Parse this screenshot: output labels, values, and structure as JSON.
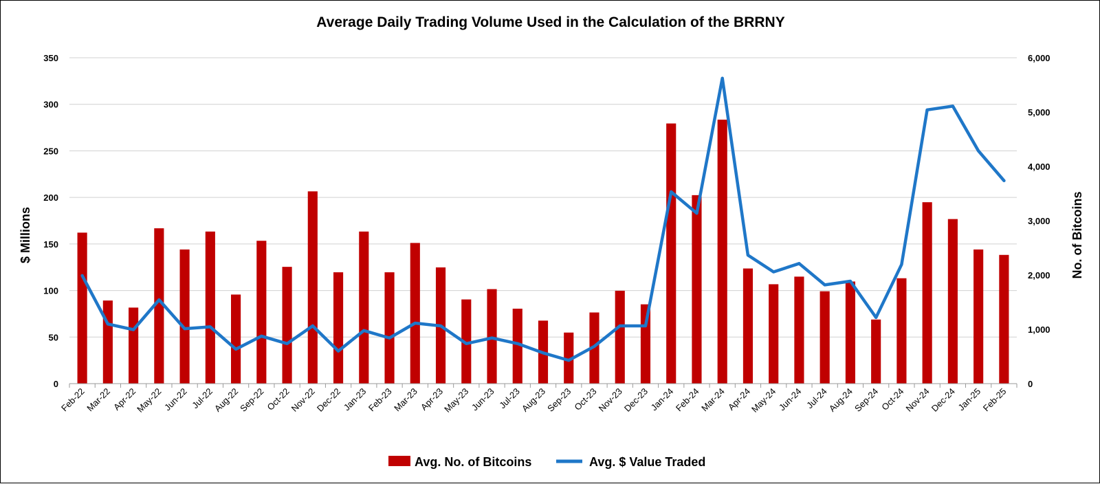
{
  "chart_data": {
    "type": "bar+line",
    "title": "Average Daily Trading Volume Used in the Calculation of the BRRNY",
    "categories": [
      "Feb-22",
      "Mar-22",
      "Apr-22",
      "May-22",
      "Jun-22",
      "Jul-22",
      "Aug-22",
      "Sep-22",
      "Oct-22",
      "Nov-22",
      "Dec-22",
      "Jan-23",
      "Feb-23",
      "Mar-23",
      "Apr-23",
      "May-23",
      "Jun-23",
      "Jul-23",
      "Aug-23",
      "Sep-23",
      "Oct-23",
      "Nov-23",
      "Dec-23",
      "Jan-24",
      "Feb-24",
      "Mar-24",
      "Apr-24",
      "May-24",
      "Jun-24",
      "Jul-24",
      "Aug-24",
      "Sep-24",
      "Oct-24",
      "Nov-24",
      "Dec-24",
      "Jan-25",
      "Feb-25"
    ],
    "series": [
      {
        "name": "Avg. No. of Bitcoins",
        "kind": "bar",
        "axis": "right",
        "color": "#C00000",
        "values": [
          2780,
          1530,
          1400,
          2860,
          2470,
          2800,
          1640,
          2630,
          2150,
          3540,
          2050,
          2800,
          2050,
          2590,
          2140,
          1550,
          1740,
          1380,
          1160,
          940,
          1310,
          1710,
          1460,
          4790,
          3470,
          4860,
          2120,
          1830,
          1970,
          1700,
          1880,
          1180,
          1940,
          3340,
          3030,
          2470,
          2370
        ]
      },
      {
        "name": "Avg. $ Value Traded",
        "kind": "line",
        "axis": "left",
        "color": "#1F77C8",
        "values": [
          116,
          64,
          58,
          90,
          59,
          61,
          37,
          51,
          43,
          62,
          35,
          57,
          49,
          65,
          62,
          43,
          49,
          43,
          33,
          25,
          40,
          62,
          62,
          206,
          183,
          328,
          138,
          120,
          129,
          106,
          110,
          71,
          128,
          294,
          298,
          250,
          218
        ]
      }
    ],
    "yleft": {
      "label": "$ Millions",
      "ylim": [
        0,
        350
      ],
      "ticks": [
        "0",
        "50",
        "100",
        "150",
        "200",
        "250",
        "300",
        "350"
      ]
    },
    "yright": {
      "label": "No. of Bitcoins",
      "ylim": [
        0,
        6000
      ],
      "ticks": [
        "0",
        "1,000",
        "2,000",
        "3,000",
        "4,000",
        "5,000",
        "6,000"
      ]
    },
    "grid": true,
    "legend": "bottom-center"
  }
}
